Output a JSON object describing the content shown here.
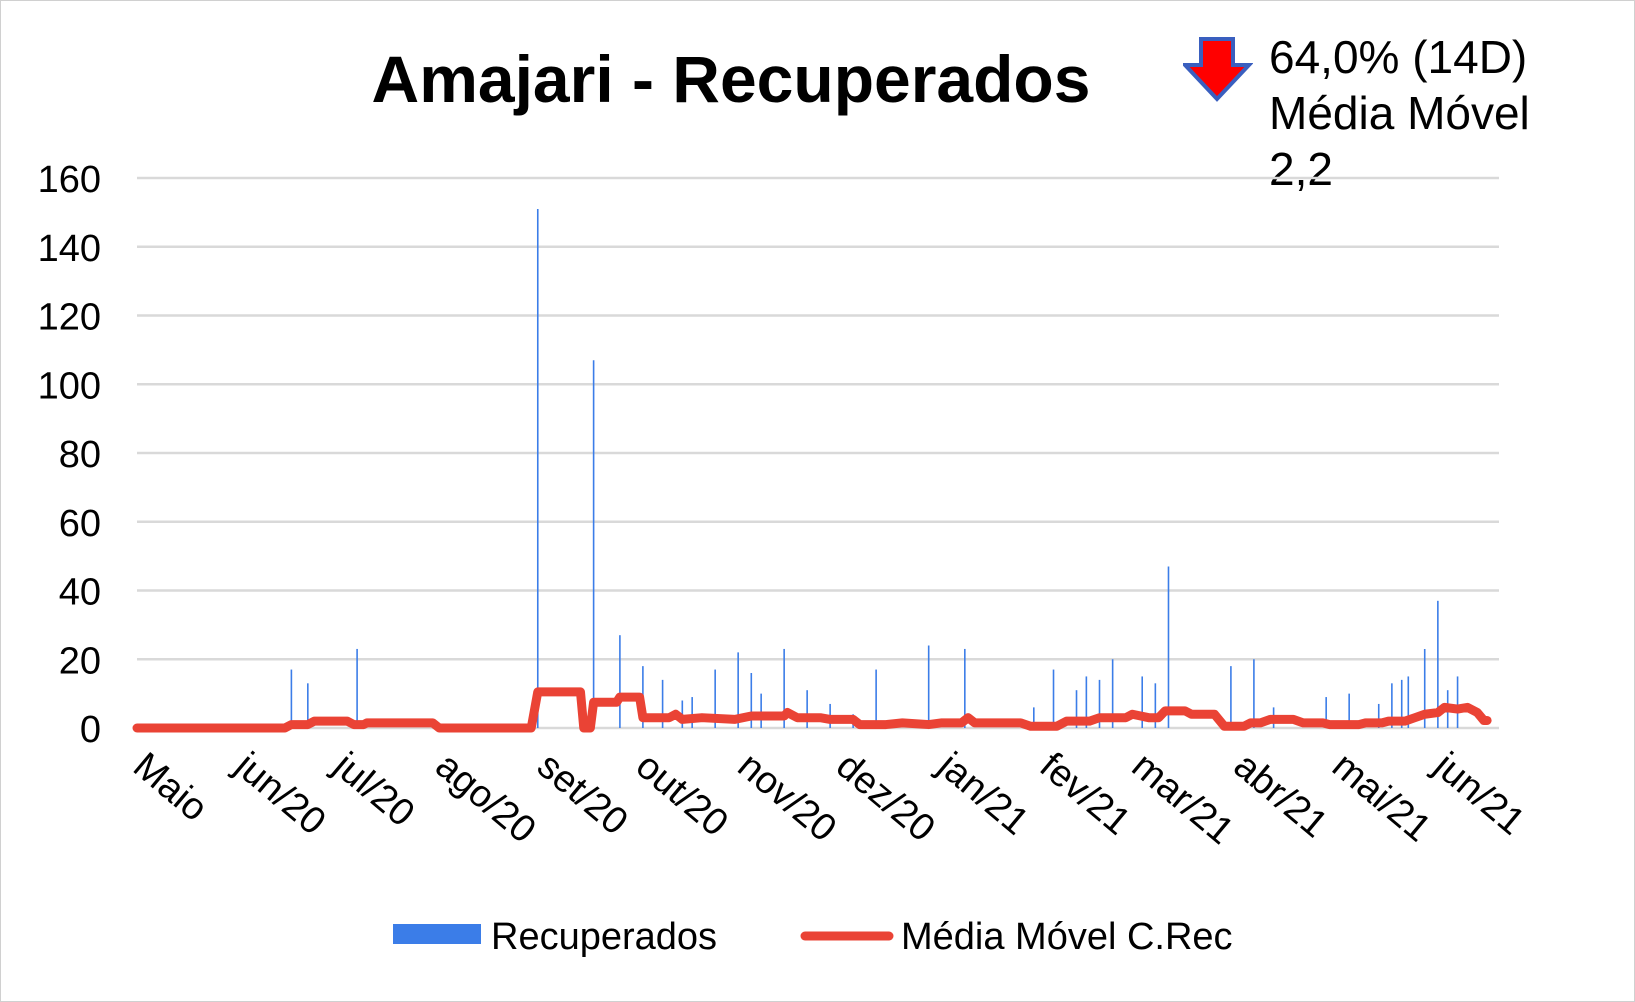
{
  "chart_data": {
    "type": "bar+line",
    "title": "Amajari - Recuperados",
    "annotation": {
      "lines": [
        "64,0% (14D)",
        "Média Móvel",
        "2,2"
      ],
      "icon": "down-arrow-icon",
      "icon_fill": "#ff0000",
      "icon_stroke": "#3a5fbf"
    },
    "ylim": [
      0,
      160
    ],
    "yticks": [
      0,
      20,
      40,
      60,
      80,
      100,
      120,
      140,
      160
    ],
    "xlim": [
      "2020-05-01",
      "2021-06-16"
    ],
    "xtick_dates": [
      "2020-05-01",
      "2020-06-01",
      "2020-07-01",
      "2020-08-01",
      "2020-09-01",
      "2020-10-01",
      "2020-11-01",
      "2020-12-01",
      "2021-01-01",
      "2021-02-01",
      "2021-03-01",
      "2021-04-01",
      "2021-05-01",
      "2021-06-01"
    ],
    "xtick_labels": [
      "Maio",
      "jun/20",
      "jul/20",
      "ago/20",
      "set/20",
      "out/20",
      "nov/20",
      "dez/20",
      "jan/21",
      "fev/21",
      "mar/21",
      "abr/21",
      "mai/21",
      "jun/21"
    ],
    "grid": true,
    "legend_position": "bottom",
    "series": [
      {
        "name": "Recuperados",
        "kind": "bar",
        "color": "#3b7de8",
        "points": [
          [
            "2020-06-17",
            17
          ],
          [
            "2020-06-22",
            13
          ],
          [
            "2020-07-07",
            23
          ],
          [
            "2020-08-31",
            151
          ],
          [
            "2020-09-17",
            107
          ],
          [
            "2020-09-25",
            27
          ],
          [
            "2020-10-02",
            18
          ],
          [
            "2020-10-08",
            14
          ],
          [
            "2020-10-14",
            8
          ],
          [
            "2020-10-17",
            9
          ],
          [
            "2020-10-24",
            17
          ],
          [
            "2020-10-31",
            22
          ],
          [
            "2020-11-04",
            16
          ],
          [
            "2020-11-07",
            10
          ],
          [
            "2020-11-14",
            23
          ],
          [
            "2020-11-21",
            11
          ],
          [
            "2020-11-28",
            7
          ],
          [
            "2020-12-05",
            4
          ],
          [
            "2020-12-12",
            17
          ],
          [
            "2020-12-28",
            24
          ],
          [
            "2021-01-08",
            23
          ],
          [
            "2021-01-29",
            6
          ],
          [
            "2021-02-04",
            17
          ],
          [
            "2021-02-11",
            11
          ],
          [
            "2021-02-14",
            15
          ],
          [
            "2021-02-18",
            14
          ],
          [
            "2021-02-22",
            20
          ],
          [
            "2021-03-03",
            15
          ],
          [
            "2021-03-07",
            13
          ],
          [
            "2021-03-11",
            47
          ],
          [
            "2021-03-30",
            18
          ],
          [
            "2021-04-06",
            20
          ],
          [
            "2021-04-12",
            6
          ],
          [
            "2021-04-28",
            9
          ],
          [
            "2021-05-05",
            10
          ],
          [
            "2021-05-14",
            7
          ],
          [
            "2021-05-18",
            13
          ],
          [
            "2021-05-21",
            14
          ],
          [
            "2021-05-23",
            15
          ],
          [
            "2021-05-28",
            23
          ],
          [
            "2021-06-01",
            37
          ],
          [
            "2021-06-04",
            11
          ],
          [
            "2021-06-07",
            15
          ]
        ]
      },
      {
        "name": "Média Móvel C.Rec",
        "kind": "line",
        "color": "#ea4335",
        "points": [
          [
            "2020-05-01",
            0
          ],
          [
            "2020-06-15",
            0
          ],
          [
            "2020-06-17",
            1
          ],
          [
            "2020-06-22",
            1
          ],
          [
            "2020-06-24",
            2
          ],
          [
            "2020-07-04",
            2
          ],
          [
            "2020-07-06",
            1
          ],
          [
            "2020-07-09",
            1
          ],
          [
            "2020-07-10",
            1.5
          ],
          [
            "2020-07-30",
            1.5
          ],
          [
            "2020-08-01",
            0
          ],
          [
            "2020-08-29",
            0
          ],
          [
            "2020-08-31",
            10.5
          ],
          [
            "2020-09-13",
            10.5
          ],
          [
            "2020-09-14",
            0
          ],
          [
            "2020-09-16",
            0
          ],
          [
            "2020-09-17",
            7.5
          ],
          [
            "2020-09-24",
            7.5
          ],
          [
            "2020-09-25",
            9
          ],
          [
            "2020-10-01",
            9
          ],
          [
            "2020-10-02",
            3
          ],
          [
            "2020-10-10",
            3
          ],
          [
            "2020-10-12",
            4
          ],
          [
            "2020-10-14",
            2.5
          ],
          [
            "2020-10-20",
            3
          ],
          [
            "2020-10-30",
            2.5
          ],
          [
            "2020-11-04",
            3.5
          ],
          [
            "2020-11-14",
            3.5
          ],
          [
            "2020-11-15",
            4.5
          ],
          [
            "2020-11-18",
            3
          ],
          [
            "2020-11-25",
            3
          ],
          [
            "2020-11-28",
            2.5
          ],
          [
            "2020-12-05",
            2.5
          ],
          [
            "2020-12-07",
            1
          ],
          [
            "2020-12-15",
            1
          ],
          [
            "2020-12-20",
            1.5
          ],
          [
            "2020-12-28",
            1
          ],
          [
            "2021-01-01",
            1.5
          ],
          [
            "2021-01-07",
            1.5
          ],
          [
            "2021-01-09",
            3
          ],
          [
            "2021-01-11",
            1.5
          ],
          [
            "2021-01-25",
            1.5
          ],
          [
            "2021-01-28",
            0.5
          ],
          [
            "2021-02-05",
            0.5
          ],
          [
            "2021-02-08",
            2
          ],
          [
            "2021-02-15",
            2
          ],
          [
            "2021-02-18",
            3
          ],
          [
            "2021-02-26",
            3
          ],
          [
            "2021-02-28",
            4
          ],
          [
            "2021-03-05",
            3
          ],
          [
            "2021-03-08",
            3
          ],
          [
            "2021-03-10",
            5
          ],
          [
            "2021-03-16",
            5
          ],
          [
            "2021-03-18",
            4
          ],
          [
            "2021-03-25",
            4
          ],
          [
            "2021-03-28",
            0.5
          ],
          [
            "2021-04-03",
            0.5
          ],
          [
            "2021-04-05",
            1.5
          ],
          [
            "2021-04-08",
            1.5
          ],
          [
            "2021-04-11",
            2.5
          ],
          [
            "2021-04-18",
            2.5
          ],
          [
            "2021-04-21",
            1.5
          ],
          [
            "2021-04-27",
            1.5
          ],
          [
            "2021-04-29",
            1
          ],
          [
            "2021-05-08",
            1
          ],
          [
            "2021-05-10",
            1.5
          ],
          [
            "2021-05-15",
            1.5
          ],
          [
            "2021-05-17",
            2
          ],
          [
            "2021-05-22",
            2
          ],
          [
            "2021-05-25",
            3
          ],
          [
            "2021-05-28",
            4
          ],
          [
            "2021-06-01",
            4.5
          ],
          [
            "2021-06-03",
            6
          ],
          [
            "2021-06-07",
            5.5
          ],
          [
            "2021-06-10",
            6
          ],
          [
            "2021-06-13",
            4.5
          ],
          [
            "2021-06-15",
            2.2
          ],
          [
            "2021-06-16",
            2.2
          ]
        ]
      }
    ]
  }
}
